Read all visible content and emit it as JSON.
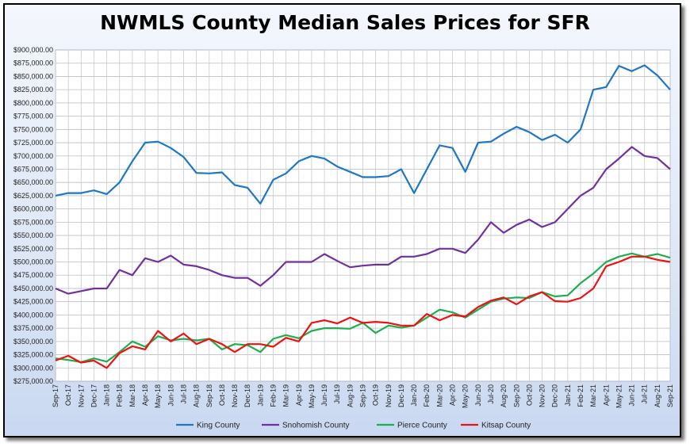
{
  "chart_data": {
    "type": "line",
    "title": "NWMLS County Median Sales Prices for SFR",
    "xlabel": "",
    "ylabel": "",
    "ylim": [
      275000,
      900000
    ],
    "ytick_step": 25000,
    "grid": true,
    "legend_position": "bottom",
    "x": [
      "Sep-17",
      "Oct-17",
      "Nov-17",
      "Dec-17",
      "Jan-18",
      "Feb-18",
      "Mar-18",
      "Apr-18",
      "May-18",
      "Jun-18",
      "Jul-18",
      "Aug-18",
      "Sep-18",
      "Oct-18",
      "Nov-18",
      "Dec-18",
      "Jan-19",
      "Feb-19",
      "Mar-19",
      "Apr-19",
      "May-19",
      "Jun-19",
      "Jul-19",
      "Aug-19",
      "Sep-19",
      "Oct-19",
      "Nov-19",
      "Dec-19",
      "Jan-20",
      "Feb-20",
      "Mar-20",
      "Apr-20",
      "May-20",
      "Jun-20",
      "Jul-20",
      "Aug-20",
      "Sep-20",
      "Oct-20",
      "Nov-20",
      "Dec-20",
      "Jan-21",
      "Feb-21",
      "Mar-21",
      "Apr-21",
      "May-21",
      "Jun-21",
      "Jul-21",
      "Aug-21",
      "Sep-21"
    ],
    "series": [
      {
        "name": "King County",
        "color": "#1f77c4",
        "values": [
          625000,
          630000,
          630000,
          635000,
          628000,
          650000,
          690000,
          725000,
          727000,
          715000,
          698000,
          668000,
          667000,
          669000,
          645000,
          640000,
          610000,
          655000,
          667000,
          690000,
          700000,
          695000,
          680000,
          670000,
          660000,
          660000,
          662000,
          675000,
          630000,
          675000,
          720000,
          715000,
          670000,
          725000,
          727000,
          742000,
          755000,
          745000,
          730000,
          740000,
          725000,
          750000,
          825000,
          830000,
          870000,
          860000,
          871000,
          852000,
          825000
        ]
      },
      {
        "name": "Snohomish County",
        "color": "#7030a0",
        "values": [
          450000,
          440000,
          445000,
          450000,
          450000,
          485000,
          475000,
          507000,
          500000,
          512000,
          495000,
          492000,
          485000,
          475000,
          470000,
          470000,
          455000,
          475000,
          500000,
          500000,
          500000,
          515000,
          502000,
          490000,
          493000,
          495000,
          495000,
          510000,
          510000,
          515000,
          525000,
          525000,
          517000,
          542000,
          575000,
          555000,
          570000,
          580000,
          566000,
          575000,
          600000,
          625000,
          640000,
          675000,
          695000,
          717000,
          700000,
          696000,
          675000
        ]
      },
      {
        "name": "Pierce County",
        "color": "#1fae4f",
        "values": [
          318000,
          315000,
          311000,
          318000,
          312000,
          330000,
          350000,
          340000,
          360000,
          352000,
          355000,
          352000,
          355000,
          335000,
          345000,
          343000,
          330000,
          355000,
          362000,
          356000,
          370000,
          375000,
          375000,
          374000,
          385000,
          366000,
          380000,
          376000,
          380000,
          395000,
          410000,
          405000,
          395000,
          410000,
          425000,
          431000,
          433000,
          432000,
          443000,
          435000,
          437000,
          460000,
          478000,
          500000,
          510000,
          516000,
          510000,
          515000,
          508000
        ]
      },
      {
        "name": "Kitsap County",
        "color": "#ee1111",
        "values": [
          314000,
          323000,
          310000,
          314000,
          300000,
          328000,
          341000,
          335000,
          370000,
          350000,
          365000,
          345000,
          355000,
          345000,
          330000,
          345000,
          345000,
          340000,
          357000,
          350000,
          385000,
          390000,
          384000,
          395000,
          385000,
          387000,
          385000,
          380000,
          380000,
          402000,
          390000,
          400000,
          397000,
          415000,
          427000,
          433000,
          420000,
          435000,
          443000,
          426000,
          425000,
          432000,
          450000,
          492000,
          500000,
          510000,
          510000,
          504000,
          500000
        ]
      }
    ]
  }
}
